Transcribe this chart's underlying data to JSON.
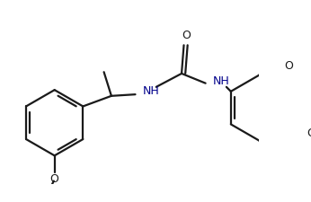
{
  "bg_color": "#ffffff",
  "line_color": "#1a1a1a",
  "nh_color": "#00008B",
  "lw": 1.6,
  "figw": 3.46,
  "figh": 2.25,
  "dpi": 100,
  "xlim": [
    0,
    346
  ],
  "ylim": [
    0,
    225
  ]
}
